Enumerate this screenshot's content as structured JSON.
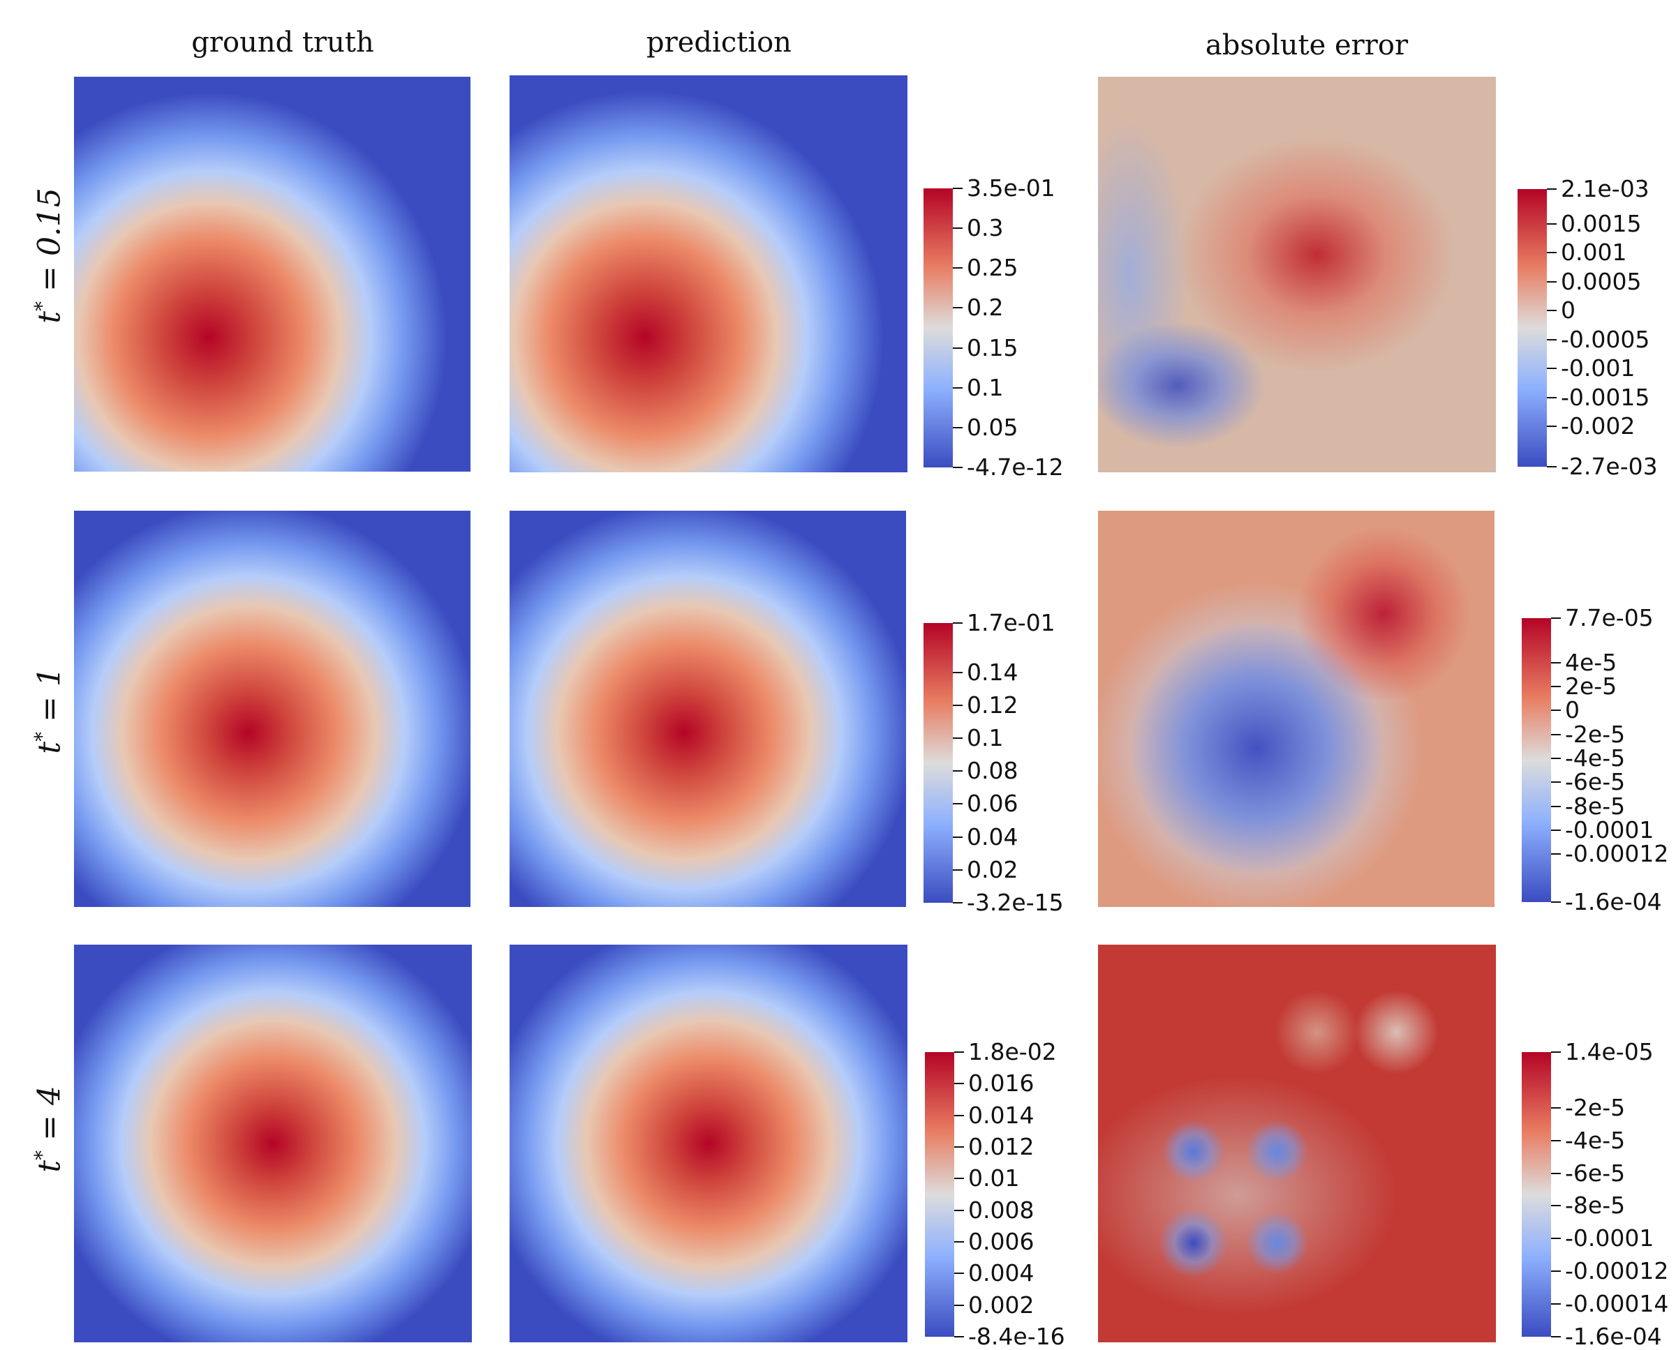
{
  "column_titles": [
    "ground truth",
    "prediction",
    "absolute error"
  ],
  "row_labels": [
    {
      "var": "t",
      "sup": "*",
      "rest": " = 0.15"
    },
    {
      "var": "t",
      "sup": "*",
      "rest": " = 1"
    },
    {
      "var": "t",
      "sup": "*",
      "rest": " = 4"
    }
  ],
  "chart_data": {
    "type": "heatmap",
    "title": "",
    "colormap": "cool-to-warm",
    "colors": {
      "low": "#3b4cc0",
      "mid": "#dddcdb",
      "high": "#b40426"
    },
    "rows": [
      {
        "time": "t* = 0.15",
        "field_colorbar": {
          "max_label": "3.5e-01",
          "min_label": "-4.7e-12",
          "range": [
            0,
            0.35
          ],
          "ticks": [
            {
              "value": 0.3,
              "label": "0.3"
            },
            {
              "value": 0.25,
              "label": "0.25"
            },
            {
              "value": 0.2,
              "label": "0.2"
            },
            {
              "value": 0.15,
              "label": "0.15"
            },
            {
              "value": 0.1,
              "label": "0.1"
            },
            {
              "value": 0.05,
              "label": "0.05"
            }
          ]
        },
        "error_colorbar": {
          "max_label": "2.1e-03",
          "min_label": "-2.7e-03",
          "range": [
            -0.0027,
            0.0021
          ],
          "ticks": [
            {
              "value": 0.0015,
              "label": "0.0015"
            },
            {
              "value": 0.001,
              "label": "0.001"
            },
            {
              "value": 0.0005,
              "label": "0.0005"
            },
            {
              "value": 0,
              "label": "0"
            },
            {
              "value": -0.0005,
              "label": "-0.0005"
            },
            {
              "value": -0.001,
              "label": "-0.001"
            },
            {
              "value": -0.0015,
              "label": "-0.0015"
            },
            {
              "value": -0.002,
              "label": "-0.002"
            }
          ]
        }
      },
      {
        "time": "t* = 1",
        "field_colorbar": {
          "max_label": "1.7e-01",
          "min_label": "-3.2e-15",
          "range": [
            0,
            0.17
          ],
          "ticks": [
            {
              "value": 0.14,
              "label": "0.14"
            },
            {
              "value": 0.12,
              "label": "0.12"
            },
            {
              "value": 0.1,
              "label": "0.1"
            },
            {
              "value": 0.08,
              "label": "0.08"
            },
            {
              "value": 0.06,
              "label": "0.06"
            },
            {
              "value": 0.04,
              "label": "0.04"
            },
            {
              "value": 0.02,
              "label": "0.02"
            }
          ]
        },
        "error_colorbar": {
          "max_label": "7.7e-05",
          "min_label": "-1.6e-04",
          "range": [
            -0.00016,
            7.7e-05
          ],
          "ticks": [
            {
              "value": 4e-05,
              "label": "4e-5"
            },
            {
              "value": 2e-05,
              "label": "2e-5"
            },
            {
              "value": 0,
              "label": "0"
            },
            {
              "value": -2e-05,
              "label": "-2e-5"
            },
            {
              "value": -4e-05,
              "label": "-4e-5"
            },
            {
              "value": -6e-05,
              "label": "-6e-5"
            },
            {
              "value": -8e-05,
              "label": "-8e-5"
            },
            {
              "value": -0.0001,
              "label": "-0.0001"
            },
            {
              "value": -0.00012,
              "label": "-0.00012"
            }
          ]
        }
      },
      {
        "time": "t* = 4",
        "field_colorbar": {
          "max_label": "1.8e-02",
          "min_label": "-8.4e-16",
          "range": [
            0,
            0.018
          ],
          "ticks": [
            {
              "value": 0.016,
              "label": "0.016"
            },
            {
              "value": 0.014,
              "label": "0.014"
            },
            {
              "value": 0.012,
              "label": "0.012"
            },
            {
              "value": 0.01,
              "label": "0.01"
            },
            {
              "value": 0.008,
              "label": "0.008"
            },
            {
              "value": 0.006,
              "label": "0.006"
            },
            {
              "value": 0.004,
              "label": "0.004"
            },
            {
              "value": 0.002,
              "label": "0.002"
            }
          ]
        },
        "error_colorbar": {
          "max_label": "1.4e-05",
          "min_label": "-1.6e-04",
          "range": [
            -0.00016,
            1.4e-05
          ],
          "ticks": [
            {
              "value": -2e-05,
              "label": "-2e-5"
            },
            {
              "value": -4e-05,
              "label": "-4e-5"
            },
            {
              "value": -6e-05,
              "label": "-6e-5"
            },
            {
              "value": -8e-05,
              "label": "-8e-5"
            },
            {
              "value": -0.0001,
              "label": "-0.0001"
            },
            {
              "value": -0.00012,
              "label": "-0.00012"
            },
            {
              "value": -0.00014,
              "label": "-0.00014"
            }
          ]
        }
      }
    ]
  }
}
